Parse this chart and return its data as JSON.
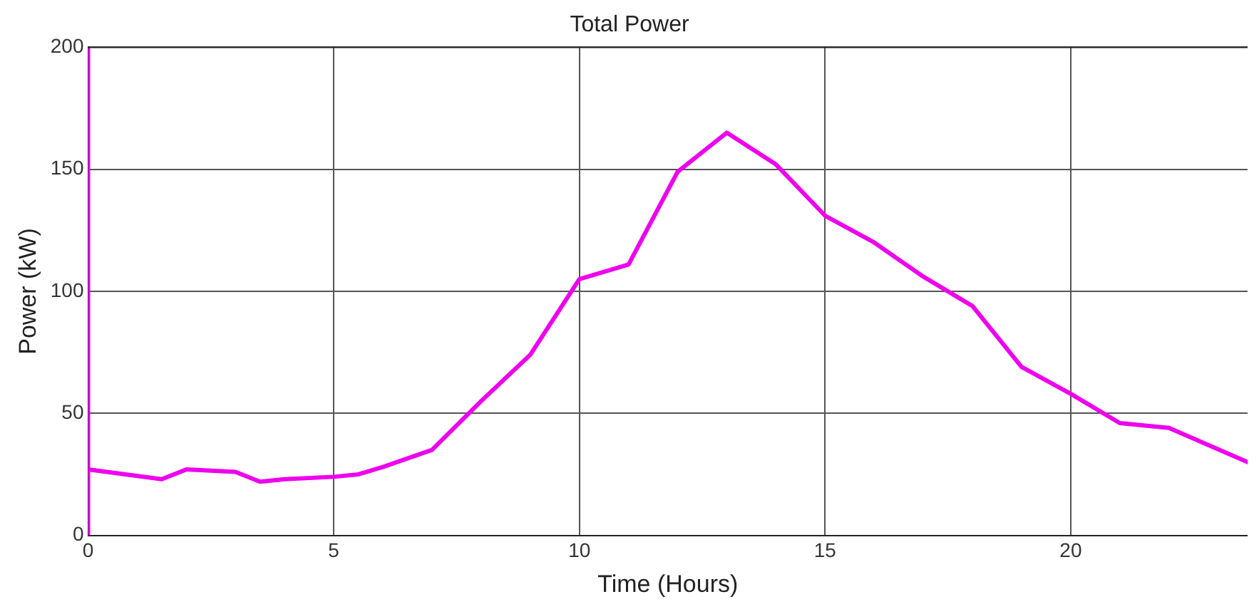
{
  "chart_data": {
    "type": "line",
    "title": "Total Power",
    "xlabel": "Time (Hours)",
    "ylabel": "Power (kW)",
    "series": [
      {
        "color": "#ee00ee",
        "x": [
          0,
          0,
          0,
          1.5,
          2,
          3,
          3.5,
          4,
          5,
          5.5,
          6,
          7,
          8,
          9,
          10,
          11,
          12,
          13,
          14,
          15,
          16,
          17,
          18,
          19,
          20,
          21,
          22,
          23.6
        ],
        "values": [
          0,
          200,
          27,
          23,
          27,
          26,
          22,
          23,
          24,
          25,
          28,
          35,
          55,
          74,
          105,
          111,
          149,
          165,
          152,
          131,
          120,
          106,
          94,
          69,
          58,
          46,
          44,
          30
        ]
      }
    ],
    "xlim": [
      0,
      23.6
    ],
    "xticks": [
      0,
      5,
      10,
      15,
      20
    ],
    "ylim": [
      0,
      200
    ],
    "yticks": [
      0,
      50,
      100,
      150,
      200
    ],
    "grid": true,
    "legend": false,
    "marker": "none",
    "line_style": "solid"
  }
}
